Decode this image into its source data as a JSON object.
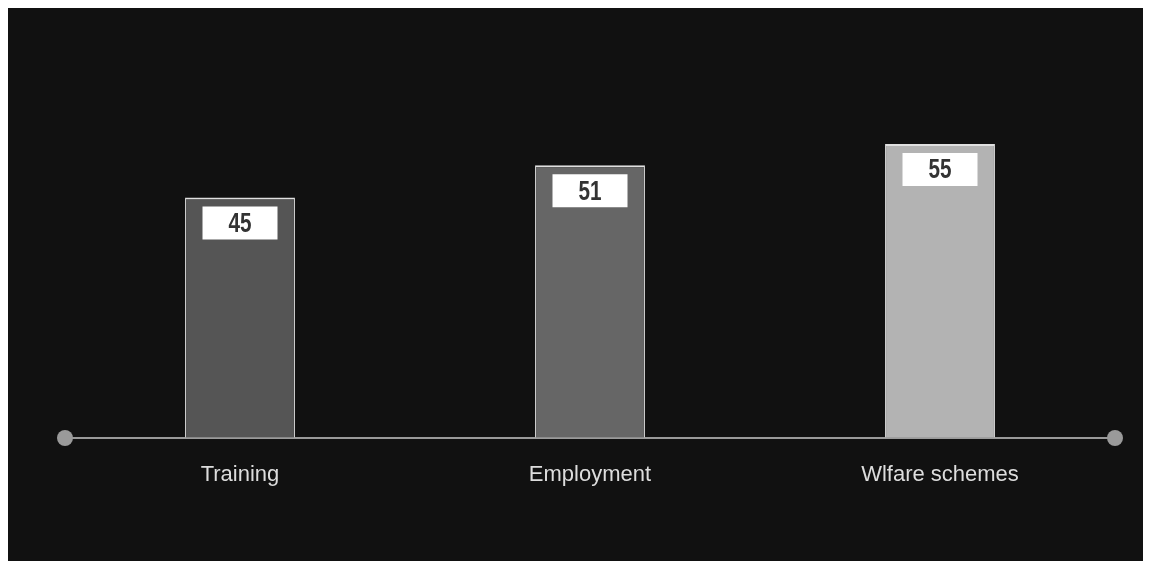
{
  "chart_data": {
    "type": "bar",
    "categories": [
      "Training",
      "Employment",
      "Wlfare schemes"
    ],
    "values": [
      45,
      51,
      55
    ],
    "colors": [
      "#555555",
      "#666666",
      "#b3b3b3"
    ],
    "data_labels": true,
    "tick_labels": "x"
  }
}
